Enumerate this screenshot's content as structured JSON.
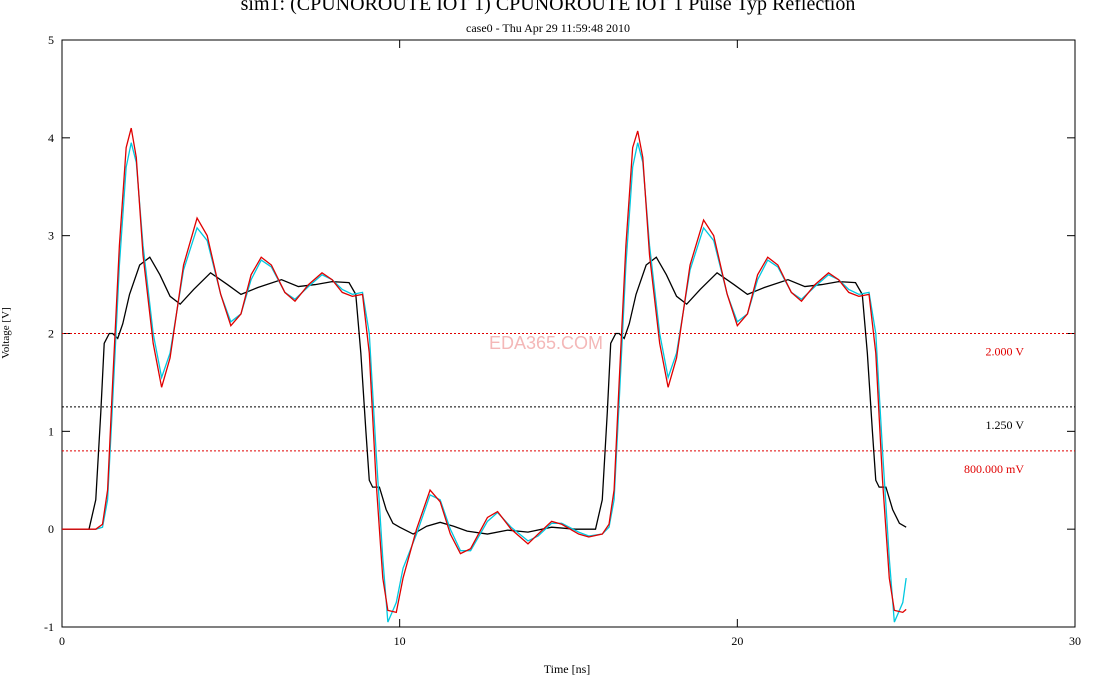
{
  "chart_data": {
    "type": "line",
    "title": "sim1: (CPUNOROUTE IOT 1) CPUNOROUTE IOT 1 Pulse Typ Reflection",
    "subtitle": "case0 - Thu Apr 29 11:59:48 2010",
    "xlabel": "Time [ns]",
    "ylabel": "Voltage [V]",
    "watermark": "EDA365.COM",
    "xlim": [
      0,
      30
    ],
    "xticks": [
      0,
      10,
      20,
      30
    ],
    "ylim": [
      -1,
      5
    ],
    "yticks": [
      -1,
      0,
      1,
      2,
      3,
      4,
      5
    ],
    "reference_lines": [
      {
        "value": 2,
        "label": "2.000 V",
        "color": "#e00000"
      },
      {
        "value": 1.25,
        "label": "1.250 V",
        "color": "#000000"
      },
      {
        "value": 0.8,
        "label": "800.000 mV",
        "color": "#e00000"
      }
    ],
    "series": [
      {
        "color": "#000000",
        "x": [
          0,
          0.8,
          1.0,
          1.15,
          1.25,
          1.4,
          1.5,
          1.65,
          1.8,
          2.0,
          2.3,
          2.6,
          2.9,
          3.2,
          3.5,
          3.9,
          4.4,
          4.9,
          5.3,
          5.8,
          6.5,
          7.0,
          7.5,
          8.0,
          8.5,
          8.7,
          8.85,
          9.0,
          9.1,
          9.2,
          9.4,
          9.6,
          9.8,
          10.0,
          10.4,
          10.8,
          11.2,
          11.6,
          12.0,
          12.6,
          13.2,
          13.8,
          14.5,
          15.2,
          15.8,
          16.0,
          16.15,
          16.25,
          16.4,
          16.5,
          16.65,
          16.8,
          17.0,
          17.3,
          17.6,
          17.9,
          18.2,
          18.5,
          18.9,
          19.4,
          19.9,
          20.3,
          20.8,
          21.5,
          22.0,
          22.5,
          23.0,
          23.5,
          23.7,
          23.85,
          24.0,
          24.1,
          24.2,
          24.4,
          24.6,
          24.8,
          25.0
        ],
        "values": [
          0,
          0,
          0.3,
          1.2,
          1.9,
          2.0,
          2.0,
          1.95,
          2.1,
          2.4,
          2.7,
          2.78,
          2.6,
          2.38,
          2.3,
          2.45,
          2.62,
          2.5,
          2.4,
          2.47,
          2.55,
          2.48,
          2.5,
          2.53,
          2.52,
          2.4,
          1.8,
          1.0,
          0.5,
          0.43,
          0.43,
          0.2,
          0.06,
          0.02,
          -0.05,
          0.03,
          0.07,
          0.03,
          -0.02,
          -0.05,
          -0.01,
          -0.03,
          0.02,
          0.0,
          0.0,
          0.3,
          1.2,
          1.9,
          2.0,
          2.0,
          1.95,
          2.1,
          2.4,
          2.7,
          2.78,
          2.6,
          2.38,
          2.3,
          2.45,
          2.62,
          2.5,
          2.4,
          2.47,
          2.55,
          2.48,
          2.5,
          2.53,
          2.52,
          2.4,
          1.8,
          1.0,
          0.5,
          0.43,
          0.43,
          0.2,
          0.06,
          0.02
        ]
      },
      {
        "color": "#00c8e0",
        "x": [
          0,
          1.0,
          1.2,
          1.35,
          1.5,
          1.7,
          1.9,
          2.05,
          2.2,
          2.4,
          2.7,
          2.95,
          3.2,
          3.6,
          4.0,
          4.3,
          4.7,
          5.0,
          5.3,
          5.6,
          5.9,
          6.2,
          6.6,
          6.9,
          7.3,
          7.7,
          8.0,
          8.3,
          8.6,
          8.9,
          9.1,
          9.3,
          9.5,
          9.65,
          9.9,
          10.1,
          10.5,
          10.9,
          11.2,
          11.5,
          11.8,
          12.1,
          12.6,
          12.9,
          13.3,
          13.8,
          14.1,
          14.5,
          14.8,
          15.3,
          15.6,
          16.0,
          16.2,
          16.35,
          16.5,
          16.7,
          16.9,
          17.05,
          17.2,
          17.4,
          17.7,
          17.95,
          18.2,
          18.6,
          19.0,
          19.3,
          19.7,
          20.0,
          20.3,
          20.6,
          20.9,
          21.2,
          21.6,
          21.9,
          22.3,
          22.7,
          23.0,
          23.3,
          23.6,
          23.9,
          24.1,
          24.3,
          24.5,
          24.65,
          24.9,
          25.0
        ],
        "values": [
          0,
          0,
          0.02,
          0.3,
          1.3,
          2.7,
          3.7,
          3.95,
          3.75,
          2.9,
          2.0,
          1.55,
          1.8,
          2.65,
          3.08,
          2.95,
          2.4,
          2.12,
          2.2,
          2.55,
          2.75,
          2.68,
          2.42,
          2.35,
          2.48,
          2.6,
          2.55,
          2.45,
          2.4,
          2.42,
          2.0,
          0.8,
          -0.3,
          -0.95,
          -0.75,
          -0.4,
          -0.05,
          0.35,
          0.3,
          0.0,
          -0.22,
          -0.22,
          0.08,
          0.17,
          0.02,
          -0.12,
          -0.07,
          0.06,
          0.06,
          -0.03,
          -0.07,
          -0.05,
          0.02,
          0.3,
          1.3,
          2.7,
          3.7,
          3.95,
          3.75,
          2.9,
          2.0,
          1.55,
          1.8,
          2.65,
          3.08,
          2.95,
          2.4,
          2.12,
          2.2,
          2.55,
          2.75,
          2.68,
          2.42,
          2.35,
          2.48,
          2.6,
          2.55,
          2.45,
          2.4,
          2.42,
          2.0,
          0.8,
          -0.3,
          -0.95,
          -0.75,
          -0.5
        ]
      },
      {
        "color": "#e00000",
        "x": [
          0,
          1.0,
          1.2,
          1.35,
          1.5,
          1.7,
          1.9,
          2.05,
          2.2,
          2.4,
          2.7,
          2.95,
          3.2,
          3.6,
          4.0,
          4.3,
          4.7,
          5.0,
          5.3,
          5.6,
          5.9,
          6.2,
          6.6,
          6.9,
          7.3,
          7.7,
          8.0,
          8.3,
          8.6,
          8.9,
          9.1,
          9.3,
          9.5,
          9.65,
          9.9,
          10.1,
          10.5,
          10.9,
          11.2,
          11.5,
          11.8,
          12.1,
          12.6,
          12.9,
          13.3,
          13.8,
          14.1,
          14.5,
          14.8,
          15.3,
          15.6,
          16.0,
          16.2,
          16.35,
          16.5,
          16.7,
          16.9,
          17.05,
          17.2,
          17.4,
          17.7,
          17.95,
          18.2,
          18.6,
          19.0,
          19.3,
          19.7,
          20.0,
          20.3,
          20.6,
          20.9,
          21.2,
          21.6,
          21.9,
          22.3,
          22.7,
          23.0,
          23.3,
          23.6,
          23.9,
          24.1,
          24.3,
          24.5,
          24.65,
          24.9,
          25.0
        ],
        "values": [
          0,
          0,
          0.05,
          0.4,
          1.5,
          2.9,
          3.9,
          4.1,
          3.8,
          2.8,
          1.9,
          1.45,
          1.75,
          2.7,
          3.18,
          3.0,
          2.4,
          2.08,
          2.2,
          2.6,
          2.78,
          2.7,
          2.42,
          2.33,
          2.5,
          2.62,
          2.55,
          2.42,
          2.38,
          2.4,
          1.8,
          0.5,
          -0.5,
          -0.83,
          -0.85,
          -0.5,
          0,
          0.4,
          0.28,
          -0.05,
          -0.25,
          -0.2,
          0.12,
          0.18,
          0,
          -0.15,
          -0.05,
          0.08,
          0.05,
          -0.05,
          -0.08,
          -0.05,
          0.05,
          0.4,
          1.5,
          2.9,
          3.9,
          4.07,
          3.8,
          2.8,
          1.9,
          1.45,
          1.75,
          2.7,
          3.16,
          3.0,
          2.4,
          2.08,
          2.2,
          2.6,
          2.78,
          2.7,
          2.42,
          2.33,
          2.5,
          2.62,
          2.55,
          2.42,
          2.38,
          2.4,
          1.8,
          0.5,
          -0.5,
          -0.83,
          -0.85,
          -0.82
        ]
      }
    ]
  }
}
